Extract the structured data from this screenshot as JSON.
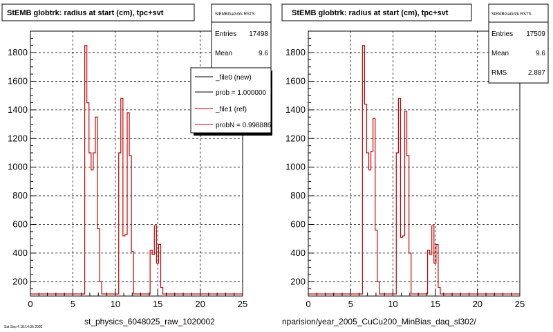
{
  "chart_data": [
    {
      "type": "histogram",
      "title": "StEMB globtrk: radius at start (cm), tpc+svt",
      "xlabel": "st_physics_6048025_raw_1020002",
      "xlim": [
        0,
        25
      ],
      "ylim": [
        100,
        1950
      ],
      "x_ticks": [
        "0",
        "5",
        "10",
        "15",
        "20",
        "25"
      ],
      "y_ticks": [
        "200",
        "400",
        "600",
        "800",
        "1000",
        "1200",
        "1400",
        "1600",
        "1800"
      ],
      "grid": true,
      "stats": {
        "name": "StEMBGaGrtrk RSTS",
        "entries_label": "Entries",
        "entries": "17498",
        "mean_label": "Mean",
        "mean": "9.6"
      },
      "legend": [
        {
          "label": "_file0 (new)",
          "color": "#000000"
        },
        {
          "label": "prob = 1.000000",
          "color": "#000000"
        },
        {
          "label": "_file1 (ref)",
          "color": "#cc0000"
        },
        {
          "label": "probN = 0.998886",
          "color": "#cc0000"
        }
      ],
      "footer_text": "Sat Sep 4 18:14:36 2005",
      "series": [
        {
          "color": "#cc0000",
          "bin_width": 0.25,
          "points": [
            [
              0,
              0
            ],
            [
              6.4,
              1850
            ],
            [
              6.65,
              1450
            ],
            [
              6.9,
              1100
            ],
            [
              7.15,
              980
            ],
            [
              7.4,
              1100
            ],
            [
              7.65,
              1350
            ],
            [
              7.9,
              570
            ],
            [
              8.15,
              200
            ],
            [
              8.4,
              0
            ],
            [
              10.4,
              1100
            ],
            [
              10.65,
              1480
            ],
            [
              10.9,
              520
            ],
            [
              11.15,
              530
            ],
            [
              11.4,
              1380
            ],
            [
              11.65,
              1080
            ],
            [
              11.9,
              410
            ],
            [
              12.15,
              0
            ],
            [
              14.1,
              420
            ],
            [
              14.35,
              390
            ],
            [
              14.6,
              590
            ],
            [
              14.85,
              330
            ],
            [
              15.1,
              460
            ],
            [
              15.35,
              160
            ],
            [
              15.6,
              0
            ]
          ]
        }
      ]
    },
    {
      "type": "histogram",
      "title": "StEMB globtrk: radius at start (cm), tpc+svt",
      "xlabel": "nparision/year_2005_CuCu200_MinBias_daq_sl302/",
      "xlim": [
        0,
        25
      ],
      "ylim": [
        100,
        1950
      ],
      "x_ticks": [
        "0",
        "5",
        "10",
        "15",
        "20",
        "25"
      ],
      "y_ticks": [
        "200",
        "400",
        "600",
        "800",
        "1000",
        "1200",
        "1400",
        "1600",
        "1800"
      ],
      "grid": true,
      "stats": {
        "name": "StEMBGaGrtrk RSTS",
        "entries_label": "Entries",
        "entries": "17509",
        "mean_label": "Mean",
        "mean": "9.6",
        "rms_label": "RMS",
        "rms": "2.887"
      },
      "series": [
        {
          "color": "#cc0000",
          "bin_width": 0.25,
          "points": [
            [
              0,
              0
            ],
            [
              6.4,
              1850
            ],
            [
              6.65,
              1440
            ],
            [
              6.9,
              1100
            ],
            [
              7.15,
              980
            ],
            [
              7.4,
              1110
            ],
            [
              7.65,
              1340
            ],
            [
              7.9,
              560
            ],
            [
              8.15,
              200
            ],
            [
              8.4,
              0
            ],
            [
              10.4,
              1100
            ],
            [
              10.65,
              1480
            ],
            [
              10.9,
              510
            ],
            [
              11.15,
              520
            ],
            [
              11.4,
              1390
            ],
            [
              11.65,
              1080
            ],
            [
              11.9,
              400
            ],
            [
              12.15,
              0
            ],
            [
              14.1,
              420
            ],
            [
              14.35,
              390
            ],
            [
              14.6,
              590
            ],
            [
              14.85,
              330
            ],
            [
              15.1,
              460
            ],
            [
              15.35,
              160
            ],
            [
              15.6,
              0
            ]
          ]
        }
      ]
    }
  ]
}
